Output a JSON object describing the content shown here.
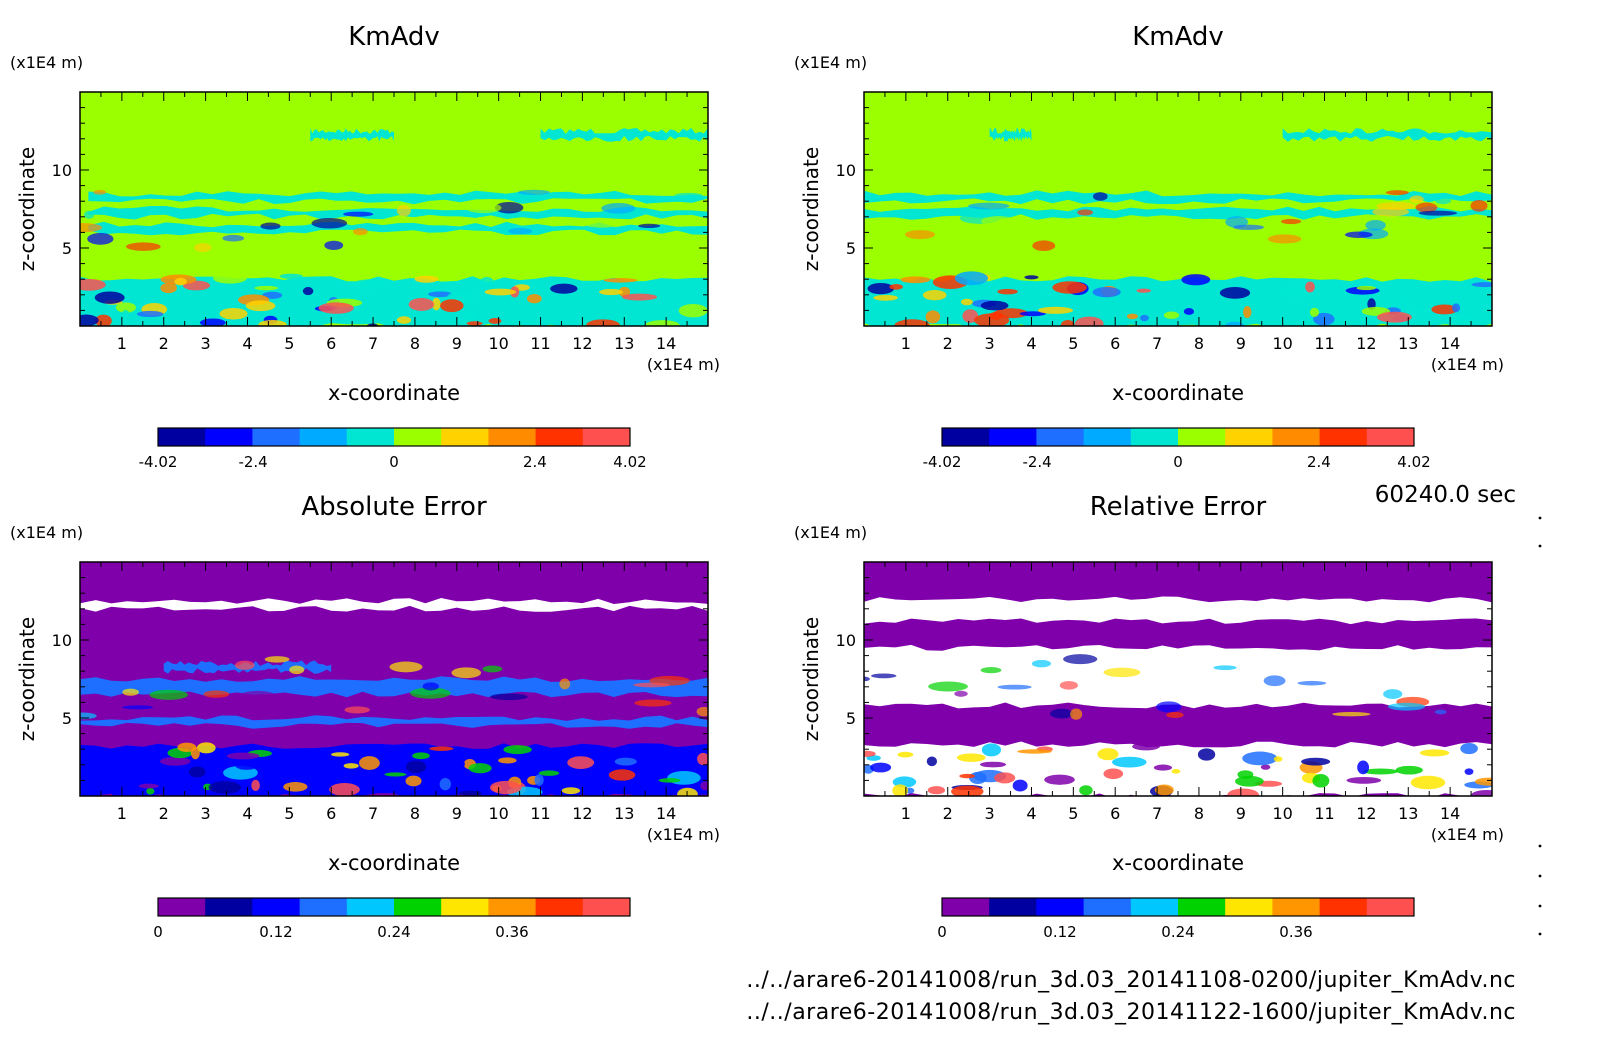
{
  "time_label": "60240.0 sec",
  "files": [
    "../../arare6-20141008/run_3d.03_20141108-0200/jupiter_KmAdv.nc",
    "../../arare6-20141008/run_3d.03_20141122-1600/jupiter_KmAdv.nc"
  ],
  "chart_data": [
    {
      "type": "heatmap",
      "panel": "top-left",
      "title": "KmAdv",
      "xlabel": "x-coordinate",
      "ylabel": "z-coordinate",
      "x_unit": "(x1E4 m)",
      "y_unit": "(x1E4 m)",
      "x_ticks": [
        1,
        2,
        3,
        4,
        5,
        6,
        7,
        8,
        9,
        10,
        11,
        12,
        13,
        14
      ],
      "y_ticks": [
        5,
        10
      ],
      "xlim": [
        0,
        15
      ],
      "ylim": [
        0,
        15
      ],
      "colorbar": {
        "tick_values": [
          -4.02,
          -2.4,
          0,
          2.4,
          4.02
        ],
        "tick_labels": [
          "-4.02",
          "-2.4",
          "0",
          "2.4",
          "4.02"
        ],
        "colors": [
          "#0000a0",
          "#0000ff",
          "#1e6eff",
          "#00aaff",
          "#00e6d2",
          "#9bff00",
          "#ffd200",
          "#ff8c00",
          "#ff3200",
          "#ff5050"
        ]
      },
      "background_color": "#9bff00",
      "bands": [
        {
          "z": [
            12.0,
            12.5
          ],
          "color": "#00e6d2",
          "x": [
            5.5,
            7.5
          ]
        },
        {
          "z": [
            12.0,
            12.5
          ],
          "color": "#00e6d2",
          "x": [
            11.0,
            15.0
          ]
        },
        {
          "z": [
            8.0,
            8.5
          ],
          "color": "#00e6d2",
          "x": [
            0.2,
            15.0
          ]
        },
        {
          "z": [
            7.0,
            7.5
          ],
          "color": "#00e6d2",
          "x": [
            0.2,
            15.0
          ]
        },
        {
          "z": [
            6.0,
            6.5
          ],
          "color": "#00e6d2",
          "x": [
            0.2,
            15.0
          ]
        },
        {
          "z": [
            0.0,
            3.0
          ],
          "color": "#00e6d2",
          "x": [
            0.0,
            15.0
          ]
        }
      ]
    },
    {
      "type": "heatmap",
      "panel": "top-right",
      "title": "KmAdv",
      "xlabel": "x-coordinate",
      "ylabel": "z-coordinate",
      "x_unit": "(x1E4 m)",
      "y_unit": "(x1E4 m)",
      "x_ticks": [
        1,
        2,
        3,
        4,
        5,
        6,
        7,
        8,
        9,
        10,
        11,
        12,
        13,
        14
      ],
      "y_ticks": [
        5,
        10
      ],
      "xlim": [
        0,
        15
      ],
      "ylim": [
        0,
        15
      ],
      "colorbar": {
        "tick_values": [
          -4.02,
          -2.4,
          0,
          2.4,
          4.02
        ],
        "tick_labels": [
          "-4.02",
          "-2.4",
          "0",
          "2.4",
          "4.02"
        ],
        "colors": [
          "#0000a0",
          "#0000ff",
          "#1e6eff",
          "#00aaff",
          "#00e6d2",
          "#9bff00",
          "#ffd200",
          "#ff8c00",
          "#ff3200",
          "#ff5050"
        ]
      },
      "background_color": "#9bff00",
      "bands": [
        {
          "z": [
            12.0,
            12.5
          ],
          "color": "#00e6d2",
          "x": [
            3.0,
            4.0
          ]
        },
        {
          "z": [
            12.0,
            12.5
          ],
          "color": "#00e6d2",
          "x": [
            10.0,
            15.0
          ]
        },
        {
          "z": [
            8.0,
            8.5
          ],
          "color": "#00e6d2",
          "x": [
            0.0,
            15.0
          ]
        },
        {
          "z": [
            7.0,
            7.5
          ],
          "color": "#00e6d2",
          "x": [
            0.0,
            15.0
          ]
        },
        {
          "z": [
            0.0,
            3.0
          ],
          "color": "#00e6d2",
          "x": [
            0.0,
            15.0
          ]
        }
      ]
    },
    {
      "type": "heatmap",
      "panel": "bottom-left",
      "title": "Absolute Error",
      "xlabel": "x-coordinate",
      "ylabel": "z-coordinate",
      "x_unit": "(x1E4 m)",
      "y_unit": "(x1E4 m)",
      "x_ticks": [
        1,
        2,
        3,
        4,
        5,
        6,
        7,
        8,
        9,
        10,
        11,
        12,
        13,
        14
      ],
      "y_ticks": [
        5,
        10
      ],
      "xlim": [
        0,
        15
      ],
      "ylim": [
        0,
        15
      ],
      "colorbar": {
        "tick_values": [
          0,
          0.12,
          0.24,
          0.36
        ],
        "tick_labels": [
          "0",
          "0.12",
          "0.24",
          "0.36"
        ],
        "colors": [
          "#7f00aa",
          "#0000a0",
          "#0000ff",
          "#1e6eff",
          "#00c8ff",
          "#00d200",
          "#ffe600",
          "#ff9600",
          "#ff3200",
          "#ff5050"
        ]
      },
      "background_color": "#7f00aa",
      "bands": [
        {
          "z": [
            12.0,
            12.5
          ],
          "color": "#ffffff",
          "x": [
            0.0,
            15.0
          ]
        },
        {
          "z": [
            8.0,
            8.5
          ],
          "color": "#1e6eff",
          "x": [
            2.0,
            6.0
          ]
        },
        {
          "z": [
            6.5,
            7.5
          ],
          "color": "#1e6eff",
          "x": [
            0.0,
            15.0
          ]
        },
        {
          "z": [
            4.5,
            5.0
          ],
          "color": "#1e6eff",
          "x": [
            0.0,
            15.0
          ]
        },
        {
          "z": [
            0.0,
            3.2
          ],
          "color": "#0000ff",
          "x": [
            0.0,
            15.0
          ]
        }
      ]
    },
    {
      "type": "heatmap",
      "panel": "bottom-right",
      "title": "Relative Error",
      "xlabel": "x-coordinate",
      "ylabel": "z-coordinate",
      "x_unit": "(x1E4 m)",
      "y_unit": "(x1E4 m)",
      "x_ticks": [
        1,
        2,
        3,
        4,
        5,
        6,
        7,
        8,
        9,
        10,
        11,
        12,
        13,
        14
      ],
      "y_ticks": [
        5,
        10
      ],
      "xlim": [
        0,
        15
      ],
      "ylim": [
        0,
        15
      ],
      "colorbar": {
        "tick_values": [
          0,
          0.12,
          0.24,
          0.36
        ],
        "tick_labels": [
          "0",
          "0.12",
          "0.24",
          "0.36"
        ],
        "colors": [
          "#7f00aa",
          "#0000a0",
          "#0000ff",
          "#1e6eff",
          "#00c8ff",
          "#00d200",
          "#ffe600",
          "#ff9600",
          "#ff3200",
          "#ff5050"
        ]
      },
      "background_color": "#7f00aa",
      "bands": [
        {
          "z": [
            11.2,
            12.6
          ],
          "color": "#ffffff",
          "x": [
            0.0,
            15.0
          ]
        },
        {
          "z": [
            5.8,
            9.5
          ],
          "color": "#ffffff",
          "x": [
            0.0,
            15.0
          ]
        },
        {
          "z": [
            0.0,
            3.3
          ],
          "color": "#ffffff",
          "x": [
            0.0,
            15.0
          ]
        }
      ]
    }
  ]
}
